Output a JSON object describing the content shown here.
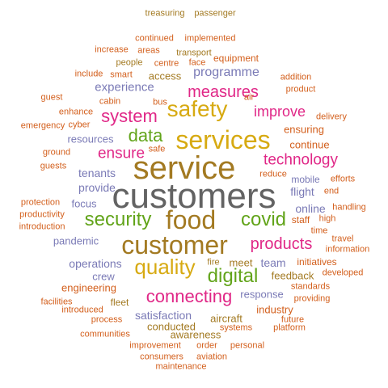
{
  "colors": {
    "brown": "#a37a22",
    "gray": "#636363",
    "purple": "#7a7ab6",
    "orange": "#d35f1c",
    "gold": "#d7aa12",
    "magenta": "#e02787",
    "green": "#62a41a"
  },
  "words": [
    {
      "text": "customers",
      "color": "gray"
    },
    {
      "text": "service",
      "color": "brown"
    },
    {
      "text": "services",
      "color": "gold"
    },
    {
      "text": "customer",
      "color": "brown"
    },
    {
      "text": "food",
      "color": "brown"
    },
    {
      "text": "safety",
      "color": "gold"
    },
    {
      "text": "quality",
      "color": "gold"
    },
    {
      "text": "security",
      "color": "green"
    },
    {
      "text": "covid",
      "color": "green"
    },
    {
      "text": "digital",
      "color": "green"
    },
    {
      "text": "system",
      "color": "magenta"
    },
    {
      "text": "data",
      "color": "green"
    },
    {
      "text": "connecting",
      "color": "magenta"
    },
    {
      "text": "products",
      "color": "magenta"
    },
    {
      "text": "measures",
      "color": "magenta"
    },
    {
      "text": "ensure",
      "color": "magenta"
    },
    {
      "text": "technology",
      "color": "magenta"
    },
    {
      "text": "improve",
      "color": "magenta"
    },
    {
      "text": "programme",
      "color": "purple"
    },
    {
      "text": "experience",
      "color": "purple"
    },
    {
      "text": "tenants",
      "color": "purple"
    },
    {
      "text": "provide",
      "color": "purple"
    },
    {
      "text": "flight",
      "color": "purple"
    },
    {
      "text": "operations",
      "color": "purple"
    },
    {
      "text": "team",
      "color": "purple"
    },
    {
      "text": "satisfaction",
      "color": "purple"
    },
    {
      "text": "online",
      "color": "purple"
    },
    {
      "text": "resources",
      "color": "purple"
    },
    {
      "text": "engineering",
      "color": "orange"
    },
    {
      "text": "access",
      "color": "brown"
    },
    {
      "text": "meet",
      "color": "brown"
    },
    {
      "text": "ensuring",
      "color": "orange"
    },
    {
      "text": "continue",
      "color": "orange"
    },
    {
      "text": "industry",
      "color": "orange"
    },
    {
      "text": "response",
      "color": "purple"
    },
    {
      "text": "feedback",
      "color": "brown"
    },
    {
      "text": "aircraft",
      "color": "brown"
    },
    {
      "text": "conducted",
      "color": "brown"
    },
    {
      "text": "awareness",
      "color": "brown"
    },
    {
      "text": "focus",
      "color": "purple"
    },
    {
      "text": "pandemic",
      "color": "purple"
    },
    {
      "text": "crew",
      "color": "purple"
    },
    {
      "text": "mobile",
      "color": "purple"
    },
    {
      "text": "staff",
      "color": "orange"
    },
    {
      "text": "initiatives",
      "color": "orange"
    },
    {
      "text": "fleet",
      "color": "brown"
    },
    {
      "text": "equipment",
      "color": "orange"
    },
    {
      "text": "people",
      "color": "brown"
    },
    {
      "text": "cabin",
      "color": "orange"
    },
    {
      "text": "enhance",
      "color": "orange"
    },
    {
      "text": "cyber",
      "color": "orange"
    },
    {
      "text": "air",
      "color": "orange"
    },
    {
      "text": "fire",
      "color": "brown"
    },
    {
      "text": "high",
      "color": "orange"
    },
    {
      "text": "time",
      "color": "orange"
    },
    {
      "text": "transport",
      "color": "brown"
    },
    {
      "text": "treasuring",
      "color": "brown"
    },
    {
      "text": "passenger",
      "color": "brown"
    },
    {
      "text": "continued",
      "color": "orange"
    },
    {
      "text": "implemented",
      "color": "orange"
    },
    {
      "text": "increase",
      "color": "orange"
    },
    {
      "text": "areas",
      "color": "orange"
    },
    {
      "text": "centre",
      "color": "orange"
    },
    {
      "text": "face",
      "color": "orange"
    },
    {
      "text": "include",
      "color": "orange"
    },
    {
      "text": "smart",
      "color": "orange"
    },
    {
      "text": "addition",
      "color": "orange"
    },
    {
      "text": "product",
      "color": "orange"
    },
    {
      "text": "guest",
      "color": "orange"
    },
    {
      "text": "bus",
      "color": "orange"
    },
    {
      "text": "delivery",
      "color": "orange"
    },
    {
      "text": "emergency",
      "color": "orange"
    },
    {
      "text": "safe",
      "color": "orange"
    },
    {
      "text": "ground",
      "color": "orange"
    },
    {
      "text": "guests",
      "color": "orange"
    },
    {
      "text": "reduce",
      "color": "orange"
    },
    {
      "text": "efforts",
      "color": "orange"
    },
    {
      "text": "end",
      "color": "orange"
    },
    {
      "text": "protection",
      "color": "orange"
    },
    {
      "text": "productivity",
      "color": "orange"
    },
    {
      "text": "introduction",
      "color": "orange"
    },
    {
      "text": "handling",
      "color": "orange"
    },
    {
      "text": "travel",
      "color": "orange"
    },
    {
      "text": "information",
      "color": "orange"
    },
    {
      "text": "developed",
      "color": "orange"
    },
    {
      "text": "standards",
      "color": "orange"
    },
    {
      "text": "providing",
      "color": "orange"
    },
    {
      "text": "facilities",
      "color": "orange"
    },
    {
      "text": "introduced",
      "color": "orange"
    },
    {
      "text": "process",
      "color": "orange"
    },
    {
      "text": "communities",
      "color": "orange"
    },
    {
      "text": "improvement",
      "color": "orange"
    },
    {
      "text": "order",
      "color": "orange"
    },
    {
      "text": "consumers",
      "color": "orange"
    },
    {
      "text": "aviation",
      "color": "orange"
    },
    {
      "text": "maintenance",
      "color": "orange"
    },
    {
      "text": "personal",
      "color": "orange"
    },
    {
      "text": "future",
      "color": "orange"
    },
    {
      "text": "systems",
      "color": "orange"
    },
    {
      "text": "platform",
      "color": "orange"
    }
  ]
}
